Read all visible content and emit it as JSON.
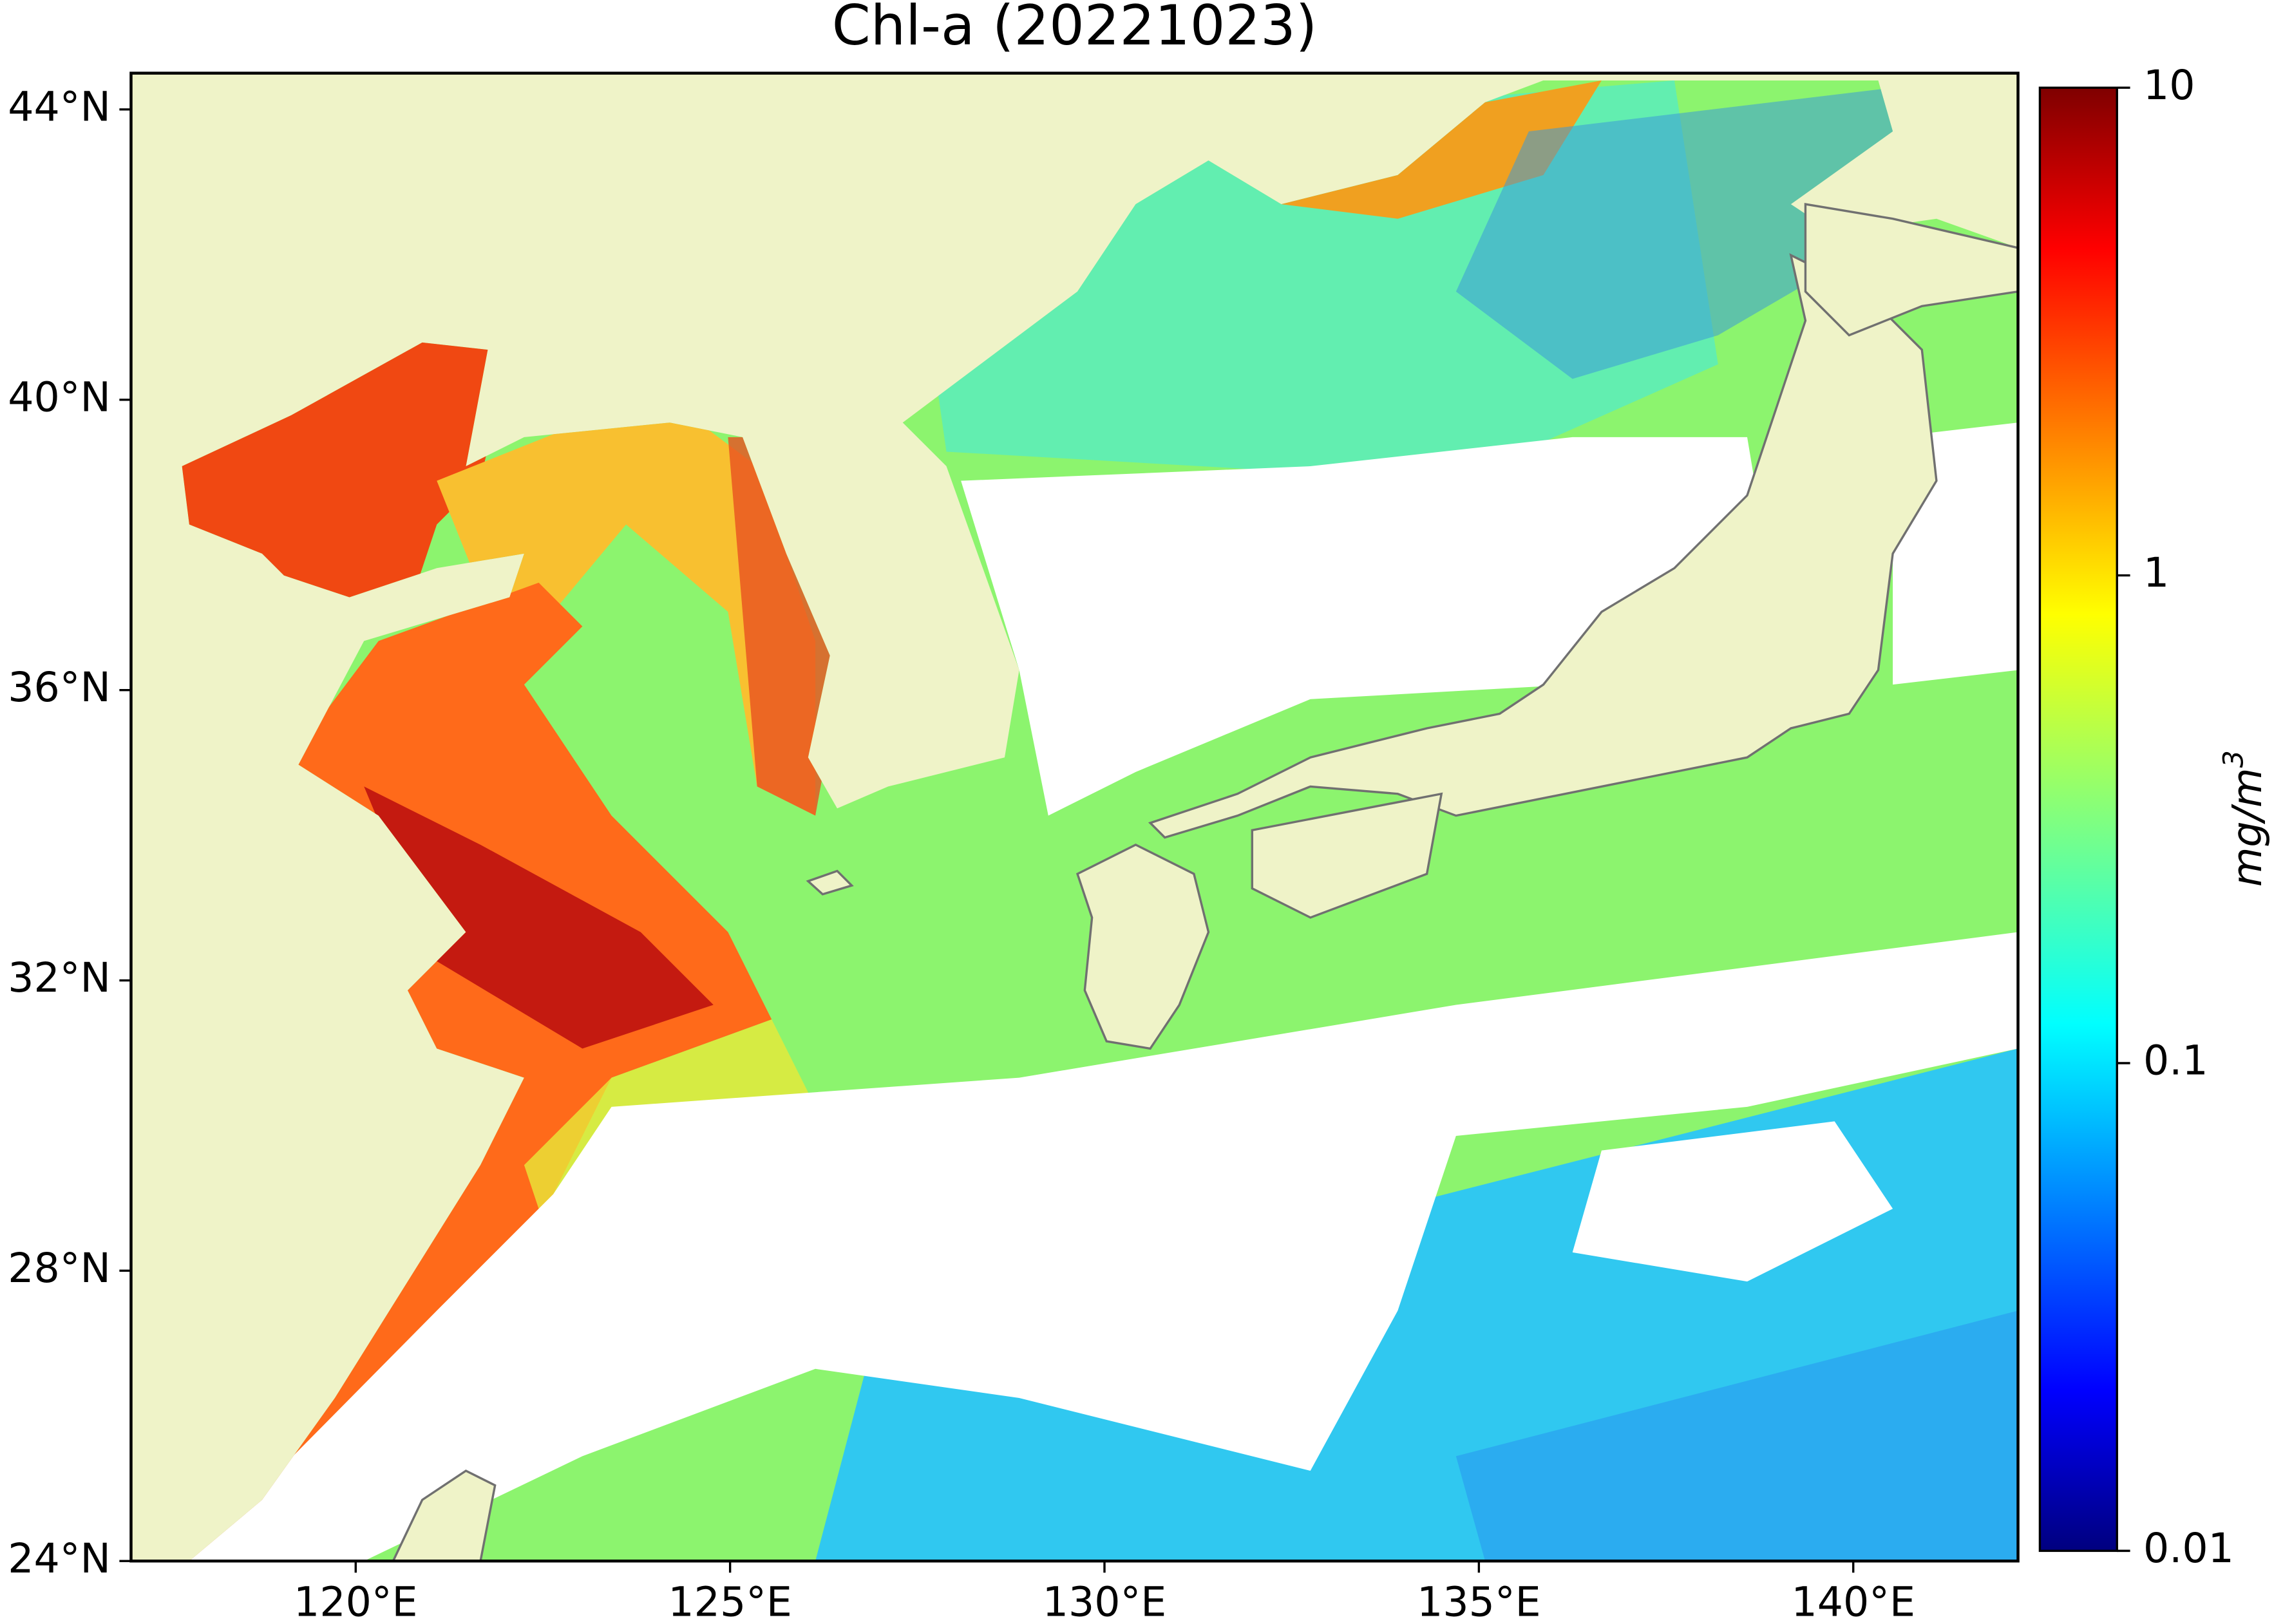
{
  "title": "Chl-a (20221023)",
  "map": {
    "xlim": [
      117,
      142.2
    ],
    "ylim": [
      24,
      44.5
    ],
    "xticks": [
      {
        "value": 120,
        "label": "120°E"
      },
      {
        "value": 125,
        "label": "125°E"
      },
      {
        "value": 130,
        "label": "130°E"
      },
      {
        "value": 135,
        "label": "135°E"
      },
      {
        "value": 140,
        "label": "140°E"
      }
    ],
    "yticks": [
      {
        "value": 24,
        "label": "24°N"
      },
      {
        "value": 28,
        "label": "28°N"
      },
      {
        "value": 32,
        "label": "32°N"
      },
      {
        "value": 36,
        "label": "36°N"
      },
      {
        "value": 40,
        "label": "40°N"
      },
      {
        "value": 44,
        "label": "44°N"
      }
    ]
  },
  "colorbar": {
    "scale": "log",
    "lim": [
      0.01,
      10
    ],
    "ticks": [
      0.01,
      0.1,
      1,
      10
    ],
    "label": "mg/m",
    "label_exponent": "3",
    "colormap": "jet"
  }
}
